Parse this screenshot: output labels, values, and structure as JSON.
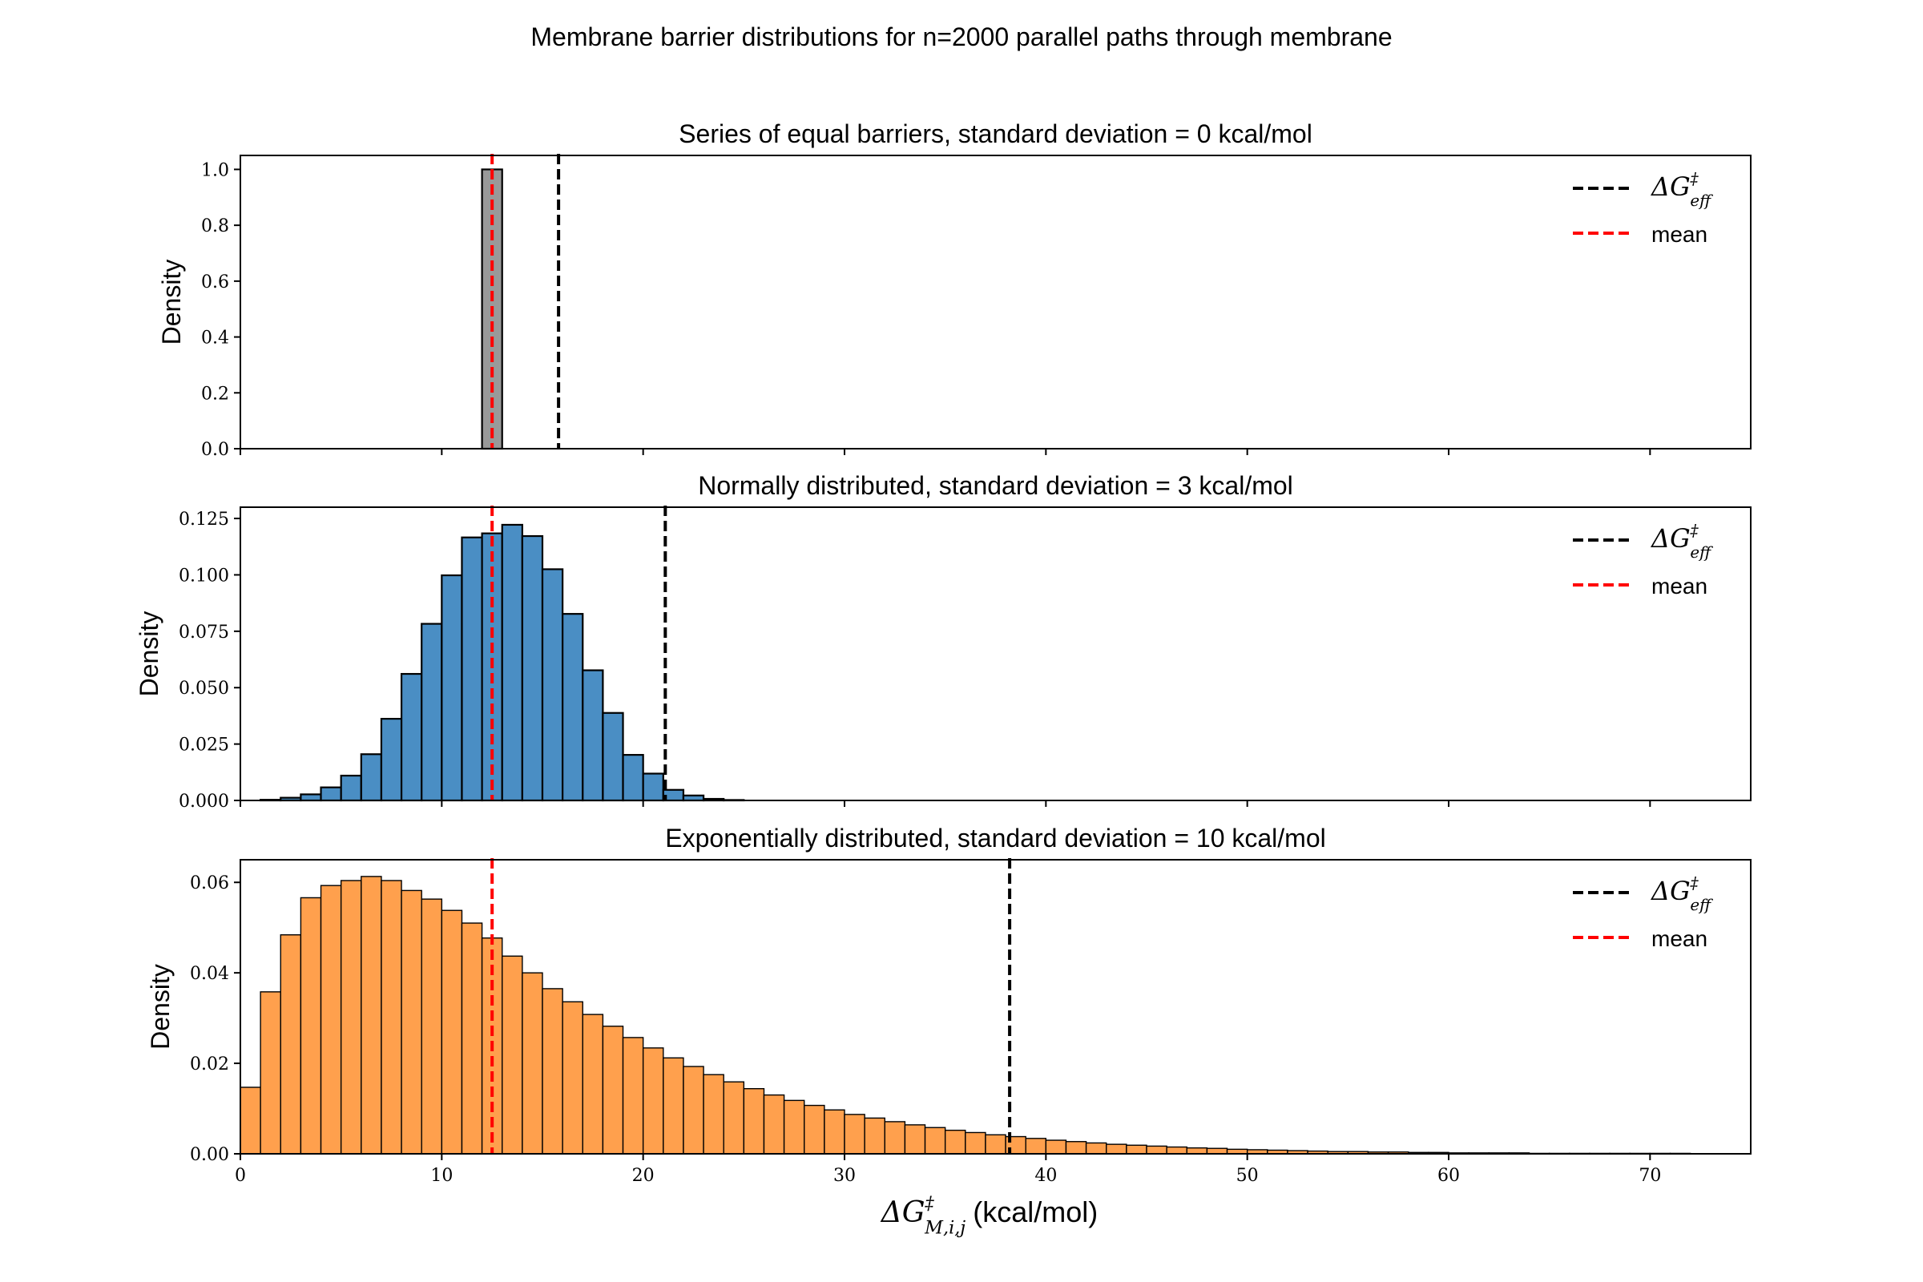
{
  "chart_data": {
    "suptitle": "Membrane barrier distributions for n=2000 parallel paths through membrane",
    "xlabel": {
      "main": "ΔG",
      "sup": "‡",
      "sub": "M,i,j",
      "unit": "(kcal/mol)"
    },
    "xlim": [
      0,
      75
    ],
    "xticks": [
      0,
      10,
      20,
      30,
      40,
      50,
      60,
      70
    ],
    "legend": {
      "position": "top-right",
      "items": [
        {
          "main": "ΔG",
          "sup": "‡",
          "sub": "eff",
          "color": "#000000",
          "style": "dashed"
        },
        {
          "label": "mean",
          "color": "#ff0000",
          "style": "dashed"
        }
      ]
    },
    "panels": [
      {
        "type": "bar",
        "title": "Series of equal barriers, standard deviation = 0 kcal/mol",
        "ylabel": "Density",
        "ylim": [
          0,
          1.05
        ],
        "yticks": [
          "0.0",
          "0.2",
          "0.4",
          "0.6",
          "0.8",
          "1.0"
        ],
        "ytick_values": [
          0,
          0.2,
          0.4,
          0.6,
          0.8,
          1.0
        ],
        "bin_start": 12,
        "bin_width": 1,
        "values": [
          1.0
        ],
        "fill": "#999999",
        "edge": "#000000",
        "mean": 12.5,
        "dg_eff": 15.8
      },
      {
        "type": "bar",
        "title": "Normally distributed, standard deviation = 3 kcal/mol",
        "ylabel": "Density",
        "ylim": [
          0,
          0.13
        ],
        "yticks": [
          "0.000",
          "0.025",
          "0.050",
          "0.075",
          "0.100",
          "0.125"
        ],
        "ytick_values": [
          0,
          0.025,
          0.05,
          0.075,
          0.1,
          0.125
        ],
        "bin_start": 1,
        "bin_width": 1,
        "values": [
          0.0003,
          0.0012,
          0.0027,
          0.0058,
          0.011,
          0.0205,
          0.0362,
          0.0561,
          0.0783,
          0.0998,
          0.1166,
          0.1184,
          0.1222,
          0.1172,
          0.1025,
          0.0827,
          0.0577,
          0.0388,
          0.0202,
          0.0119,
          0.0047,
          0.0022,
          0.0007,
          0.0002
        ],
        "fill": "#4a8ec4",
        "edge": "#000000",
        "mean": 12.5,
        "dg_eff": 21.1
      },
      {
        "type": "bar",
        "title": "Exponentially distributed, standard deviation = 10 kcal/mol",
        "ylabel": "Density",
        "ylim": [
          0,
          0.065
        ],
        "yticks": [
          "0.00",
          "0.02",
          "0.04",
          "0.06"
        ],
        "ytick_values": [
          0,
          0.02,
          0.04,
          0.06
        ],
        "bin_start": 0,
        "bin_width": 1,
        "values": [
          0.0147,
          0.0358,
          0.0484,
          0.0566,
          0.0593,
          0.0604,
          0.0613,
          0.0604,
          0.0582,
          0.0563,
          0.0538,
          0.051,
          0.0477,
          0.0437,
          0.04,
          0.0365,
          0.0336,
          0.0308,
          0.0282,
          0.0257,
          0.0234,
          0.0212,
          0.0193,
          0.0175,
          0.0159,
          0.0144,
          0.013,
          0.0118,
          0.0107,
          0.0097,
          0.0087,
          0.0079,
          0.0071,
          0.0064,
          0.0058,
          0.0052,
          0.0047,
          0.0042,
          0.0038,
          0.0034,
          0.003,
          0.0027,
          0.0024,
          0.0021,
          0.0019,
          0.0017,
          0.0015,
          0.0013,
          0.0012,
          0.001,
          0.0009,
          0.0008,
          0.0007,
          0.0006,
          0.0005,
          0.0005,
          0.0004,
          0.0004,
          0.0003,
          0.0003,
          0.0002,
          0.0002,
          0.0002,
          0.0002,
          0.0001,
          0.0001,
          0.0001,
          0.0001,
          0.0001,
          0.0001,
          0.0001,
          0.0001
        ],
        "fill": "#ffa04d",
        "edge": "#000000",
        "mean": 12.5,
        "dg_eff": 38.2
      }
    ]
  }
}
